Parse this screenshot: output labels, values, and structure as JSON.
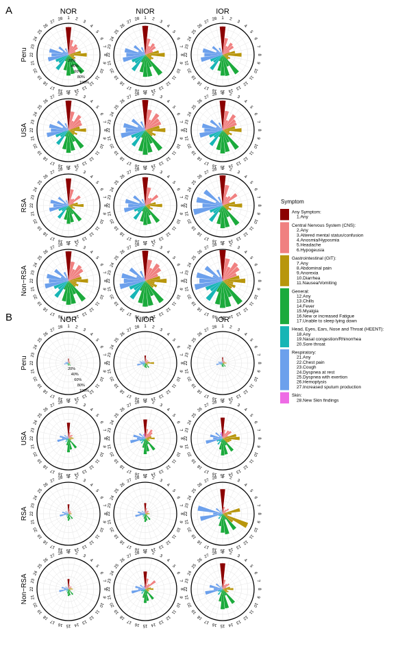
{
  "chart_data": {
    "type": "polar-bar",
    "panels": [
      {
        "letter": "A",
        "label": "A"
      },
      {
        "letter": "B",
        "label": "B"
      }
    ],
    "columns": [
      "NOR",
      "NIOR",
      "IOR"
    ],
    "rows": [
      "Peru",
      "USA",
      "RSA",
      "Non−RSA"
    ],
    "spoke_labels": [
      "1",
      "2",
      "3",
      "4",
      "5",
      "6",
      "7",
      "8",
      "9",
      "10",
      "11",
      "12",
      "13",
      "14",
      "15",
      "16",
      "17",
      "18",
      "19",
      "20",
      "21",
      "22",
      "23",
      "24",
      "25",
      "26",
      "27",
      "28"
    ],
    "radial_labels": [
      "20%",
      "40%",
      "60%",
      "80%",
      "100%"
    ],
    "radial_axis_max": 100,
    "legend": {
      "title": "Symptom",
      "groups": [
        {
          "name": "Any Symptom:",
          "color": "#8B0000",
          "items": [
            "1.Any"
          ]
        },
        {
          "name": "Central Nervous System (CNS):",
          "color": "#F08080",
          "items": [
            "2.Any",
            "3.Altered mental status/confusion",
            "4.Anosmia/Hyposmia",
            "5.Headache",
            "6.Hypogeusia"
          ]
        },
        {
          "name": "Gastrointestinal (GIT):",
          "color": "#B8960C",
          "items": [
            "7.Any",
            "8.Abdominal pain",
            "9.Anorexia",
            "10.Diarrhea",
            "11.Nausea/Vomiting"
          ]
        },
        {
          "name": "General:",
          "color": "#1BAA3C",
          "items": [
            "12.Any",
            "13.Chills",
            "14.Fever",
            "15.Myalgia",
            "16.New or increased Fatigue",
            "17.Unable to sleep lying down"
          ]
        },
        {
          "name": "Head, Eyes, Ears, Nose and Throat (HEENT):",
          "color": "#17B5B5",
          "items": [
            "18.Any",
            "19.Nasal congestion/Rhinorrhea",
            "20.Sore throat"
          ]
        },
        {
          "name": "Respiratory:",
          "color": "#6CA0EC",
          "items": [
            "21.Any",
            "22.Chest pain",
            "23.Cough",
            "24.Dyspnea at rest",
            "25.Dyspnea with exertion",
            "26.Hemoptysis",
            "27.Increased sputum production"
          ]
        },
        {
          "name": "Skin:",
          "color": "#EE6BE5",
          "items": [
            "28.New Skin findings"
          ]
        }
      ]
    },
    "symptom_group_index": [
      0,
      1,
      1,
      1,
      1,
      1,
      2,
      2,
      2,
      2,
      2,
      3,
      3,
      3,
      3,
      3,
      3,
      4,
      4,
      4,
      5,
      5,
      5,
      5,
      5,
      5,
      5,
      6
    ],
    "values_percent": {
      "A": {
        "Peru": {
          "NOR": [
            88,
            48,
            30,
            40,
            36,
            24,
            40,
            58,
            18,
            24,
            22,
            72,
            38,
            62,
            66,
            50,
            22,
            58,
            38,
            44,
            66,
            54,
            62,
            20,
            38,
            10,
            22,
            6
          ],
          "NIOR": [
            92,
            52,
            30,
            44,
            40,
            26,
            44,
            62,
            20,
            28,
            24,
            78,
            42,
            70,
            70,
            56,
            26,
            62,
            40,
            46,
            72,
            60,
            66,
            24,
            44,
            12,
            26,
            8
          ],
          "IOR": [
            90,
            54,
            30,
            46,
            42,
            24,
            40,
            60,
            18,
            26,
            22,
            74,
            40,
            68,
            66,
            52,
            22,
            58,
            36,
            42,
            70,
            58,
            64,
            22,
            40,
            10,
            24,
            6
          ]
        },
        "USA": {
          "NOR": [
            94,
            60,
            32,
            58,
            48,
            46,
            36,
            56,
            20,
            30,
            22,
            70,
            40,
            66,
            72,
            62,
            22,
            56,
            32,
            44,
            70,
            56,
            62,
            20,
            44,
            8,
            24,
            6
          ],
          "NIOR": [
            96,
            66,
            36,
            64,
            54,
            54,
            46,
            64,
            24,
            36,
            28,
            78,
            46,
            72,
            78,
            68,
            26,
            62,
            38,
            48,
            78,
            62,
            70,
            26,
            52,
            10,
            30,
            8
          ],
          "IOR": [
            94,
            62,
            34,
            60,
            50,
            48,
            40,
            60,
            22,
            32,
            24,
            74,
            42,
            70,
            74,
            64,
            24,
            60,
            34,
            46,
            74,
            58,
            66,
            22,
            48,
            8,
            26,
            6
          ]
        },
        "RSA": {
          "NOR": [
            86,
            52,
            22,
            26,
            46,
            18,
            30,
            48,
            14,
            22,
            16,
            60,
            30,
            54,
            58,
            46,
            16,
            50,
            26,
            34,
            62,
            48,
            58,
            16,
            40,
            6,
            18,
            4
          ],
          "NIOR": [
            90,
            58,
            26,
            30,
            50,
            20,
            34,
            54,
            16,
            26,
            18,
            66,
            34,
            60,
            62,
            52,
            20,
            54,
            30,
            38,
            68,
            54,
            64,
            20,
            46,
            8,
            22,
            6
          ],
          "IOR": [
            96,
            66,
            30,
            36,
            56,
            24,
            40,
            62,
            20,
            30,
            22,
            76,
            40,
            70,
            72,
            60,
            24,
            62,
            36,
            44,
            94,
            64,
            84,
            24,
            72,
            12,
            30,
            8
          ]
        },
        "Non−RSA": {
          "NOR": [
            94,
            62,
            40,
            60,
            56,
            40,
            42,
            62,
            26,
            34,
            28,
            78,
            46,
            74,
            76,
            66,
            30,
            64,
            40,
            50,
            76,
            62,
            70,
            26,
            54,
            12,
            30,
            8
          ],
          "NIOR": [
            96,
            68,
            44,
            66,
            60,
            44,
            48,
            68,
            30,
            40,
            32,
            84,
            52,
            80,
            82,
            72,
            34,
            70,
            44,
            54,
            82,
            68,
            76,
            30,
            60,
            14,
            34,
            10
          ],
          "IOR": [
            98,
            72,
            48,
            70,
            64,
            48,
            54,
            72,
            34,
            44,
            36,
            90,
            56,
            84,
            86,
            76,
            38,
            76,
            48,
            58,
            90,
            74,
            84,
            34,
            68,
            16,
            38,
            12
          ]
        }
      },
      "B": {
        "Peru": {
          "NOR": [
            14,
            8,
            4,
            6,
            6,
            4,
            4,
            6,
            2,
            4,
            4,
            10,
            4,
            8,
            8,
            6,
            2,
            6,
            4,
            6,
            14,
            8,
            10,
            4,
            6,
            2,
            4,
            2
          ],
          "NIOR": [
            24,
            14,
            8,
            12,
            12,
            8,
            14,
            28,
            6,
            10,
            8,
            18,
            8,
            16,
            14,
            12,
            4,
            12,
            8,
            10,
            26,
            14,
            18,
            6,
            12,
            4,
            6,
            2
          ],
          "IOR": [
            18,
            10,
            6,
            8,
            8,
            6,
            8,
            12,
            4,
            6,
            6,
            14,
            6,
            12,
            12,
            10,
            4,
            8,
            6,
            8,
            20,
            10,
            14,
            4,
            8,
            2,
            4,
            2
          ]
        },
        "USA": {
          "NOR": [
            50,
            20,
            10,
            14,
            16,
            8,
            12,
            16,
            6,
            10,
            8,
            38,
            14,
            36,
            44,
            22,
            6,
            14,
            8,
            10,
            36,
            20,
            28,
            6,
            16,
            4,
            8,
            6
          ],
          "NIOR": [
            60,
            30,
            16,
            34,
            28,
            20,
            20,
            30,
            12,
            16,
            12,
            46,
            20,
            42,
            50,
            30,
            10,
            20,
            12,
            18,
            48,
            26,
            38,
            10,
            24,
            6,
            14,
            16
          ],
          "IOR": [
            66,
            28,
            18,
            30,
            34,
            18,
            44,
            54,
            28,
            24,
            20,
            50,
            24,
            52,
            54,
            36,
            12,
            24,
            14,
            20,
            54,
            30,
            40,
            12,
            28,
            8,
            16,
            20
          ]
        },
        "RSA": {
          "NOR": [
            30,
            14,
            6,
            10,
            10,
            6,
            8,
            10,
            4,
            6,
            6,
            20,
            8,
            18,
            22,
            14,
            4,
            10,
            6,
            8,
            28,
            14,
            20,
            4,
            12,
            2,
            6,
            2
          ],
          "NIOR": [
            34,
            18,
            8,
            12,
            14,
            8,
            10,
            14,
            6,
            8,
            6,
            24,
            10,
            22,
            26,
            16,
            6,
            12,
            8,
            10,
            32,
            18,
            24,
            6,
            14,
            4,
            8,
            2
          ],
          "IOR": [
            78,
            22,
            10,
            16,
            24,
            10,
            56,
            28,
            16,
            86,
            40,
            62,
            20,
            66,
            60,
            40,
            8,
            20,
            10,
            14,
            72,
            30,
            80,
            10,
            26,
            4,
            14,
            2
          ]
        },
        "Non−RSA": {
          "NOR": [
            32,
            14,
            6,
            10,
            12,
            6,
            10,
            14,
            4,
            8,
            6,
            22,
            8,
            20,
            22,
            14,
            4,
            10,
            6,
            8,
            30,
            14,
            22,
            4,
            12,
            2,
            6,
            2
          ],
          "NIOR": [
            56,
            34,
            14,
            20,
            40,
            12,
            18,
            26,
            10,
            14,
            12,
            40,
            16,
            38,
            44,
            28,
            8,
            18,
            10,
            14,
            44,
            22,
            32,
            8,
            20,
            4,
            10,
            10
          ],
          "IOR": [
            82,
            30,
            14,
            20,
            26,
            12,
            24,
            34,
            14,
            20,
            16,
            56,
            22,
            62,
            64,
            40,
            10,
            22,
            12,
            16,
            56,
            28,
            42,
            10,
            26,
            4,
            12,
            4
          ]
        }
      }
    }
  }
}
